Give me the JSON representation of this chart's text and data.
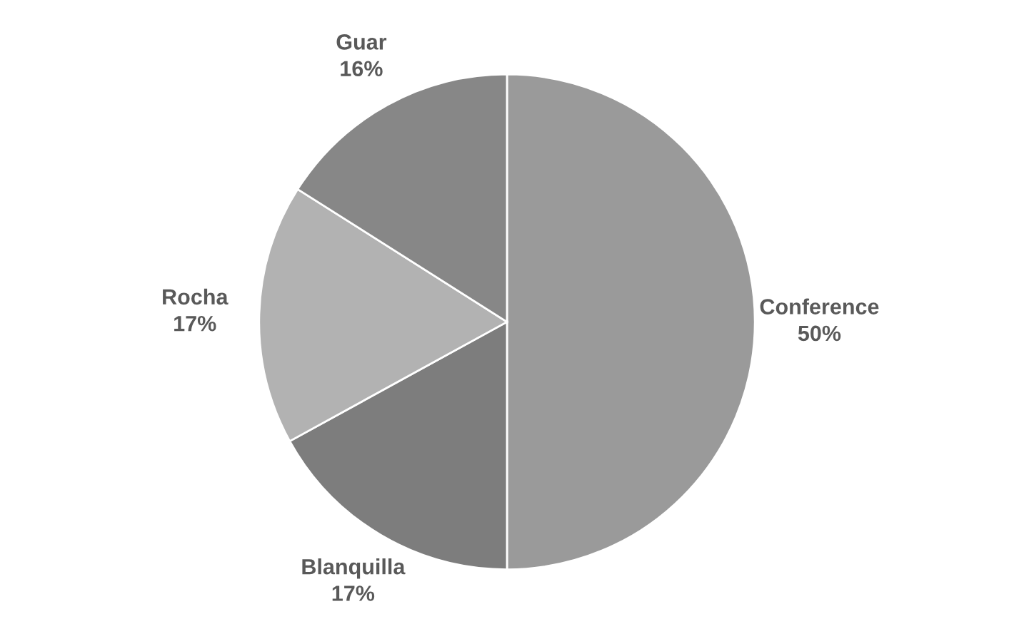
{
  "chart_data": {
    "type": "pie",
    "categories": [
      "Conference",
      "Blanquilla",
      "Rocha",
      "Guar"
    ],
    "values": [
      50,
      17,
      17,
      16
    ],
    "colors": [
      "#9a9a9a",
      "#7d7d7d",
      "#b2b2b2",
      "#878787"
    ],
    "value_labels": [
      "50%",
      "17%",
      "17%",
      "16%"
    ],
    "legend": false
  }
}
